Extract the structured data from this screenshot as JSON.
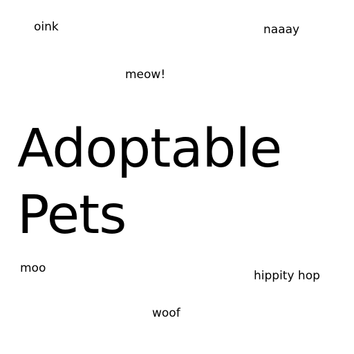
{
  "title": {
    "line1": "Adoptable",
    "line2": "Pets"
  },
  "sounds": {
    "oink": "oink",
    "naaay": "naaay",
    "meow": "meow!",
    "moo": "moo",
    "hop": "hippity hop",
    "woof": "woof"
  },
  "colors": {
    "background": "#ffffff",
    "text": "#000000"
  }
}
